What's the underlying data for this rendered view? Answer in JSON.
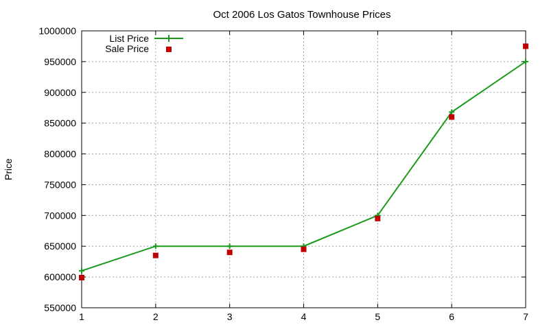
{
  "chart_data": {
    "type": "line",
    "title": "Oct 2006 Los Gatos Townhouse Prices",
    "xlabel": "",
    "ylabel": "Price",
    "xlim": [
      1,
      7
    ],
    "ylim": [
      550000,
      1000000
    ],
    "x_ticks": [
      "1",
      "2",
      "3",
      "4",
      "5",
      "6",
      "7"
    ],
    "y_ticks": [
      "550000",
      "600000",
      "650000",
      "700000",
      "750000",
      "800000",
      "850000",
      "900000",
      "950000",
      "1000000"
    ],
    "grid": true,
    "legend_position": "top-left",
    "series": [
      {
        "name": "List Price",
        "style": "lines+points",
        "marker": "plus",
        "color": "#1a9a1a",
        "x": [
          1,
          2,
          3,
          4,
          5,
          6,
          7
        ],
        "y": [
          610000,
          650000,
          650000,
          650000,
          700000,
          868000,
          950000
        ]
      },
      {
        "name": "Sale Price",
        "style": "points",
        "marker": "square",
        "color": "#c00000",
        "x": [
          1,
          2,
          3,
          4,
          5,
          6,
          7
        ],
        "y": [
          599000,
          635000,
          640000,
          645000,
          695000,
          860000,
          975000
        ]
      }
    ]
  }
}
